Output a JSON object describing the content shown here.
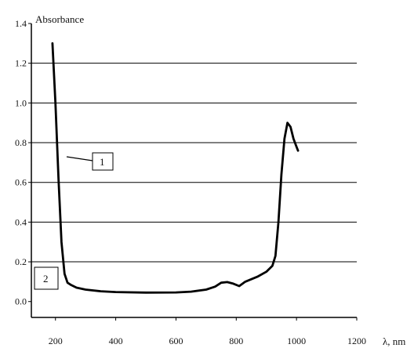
{
  "chart_data": {
    "type": "line",
    "title": "",
    "ylabel": "Absorbance",
    "xlabel": "λ, nm",
    "xlim": [
      120,
      1200
    ],
    "ylim": [
      -0.08,
      1.4
    ],
    "x_ticks": [
      200,
      400,
      600,
      800,
      1000,
      1200
    ],
    "y_ticks": [
      0.0,
      0.2,
      0.4,
      0.6,
      0.8,
      1.0,
      1.2,
      1.4
    ],
    "x_tick_labels": [
      "200",
      "400",
      "600",
      "800",
      "1000",
      "1200"
    ],
    "y_tick_labels": [
      "0.0",
      "0.2",
      "0.4",
      "0.6",
      "0.8",
      "1.0",
      "1.2",
      "1.4"
    ],
    "grid": "horizontal",
    "series": [
      {
        "label": "1",
        "color": "#000000",
        "x": [
          190,
          200,
          210,
          220,
          230,
          240,
          250,
          270,
          300,
          350,
          400,
          500,
          600,
          650,
          700,
          730,
          750,
          770,
          790,
          810,
          830,
          870,
          900,
          920,
          930,
          940,
          950,
          960,
          970,
          980,
          990,
          1000,
          1005
        ],
        "y": [
          1.3,
          1.0,
          0.62,
          0.3,
          0.14,
          0.095,
          0.085,
          0.07,
          0.06,
          0.052,
          0.048,
          0.045,
          0.046,
          0.05,
          0.06,
          0.075,
          0.095,
          0.098,
          0.09,
          0.078,
          0.1,
          0.125,
          0.15,
          0.18,
          0.23,
          0.4,
          0.64,
          0.82,
          0.9,
          0.88,
          0.82,
          0.78,
          0.76
        ]
      },
      {
        "label": "2",
        "color": "#000000",
        "x": [],
        "y": []
      }
    ],
    "annotations": [
      {
        "text": "1",
        "x": 0,
        "y": 0
      },
      {
        "text": "2",
        "x": 0,
        "y": 0
      }
    ]
  }
}
